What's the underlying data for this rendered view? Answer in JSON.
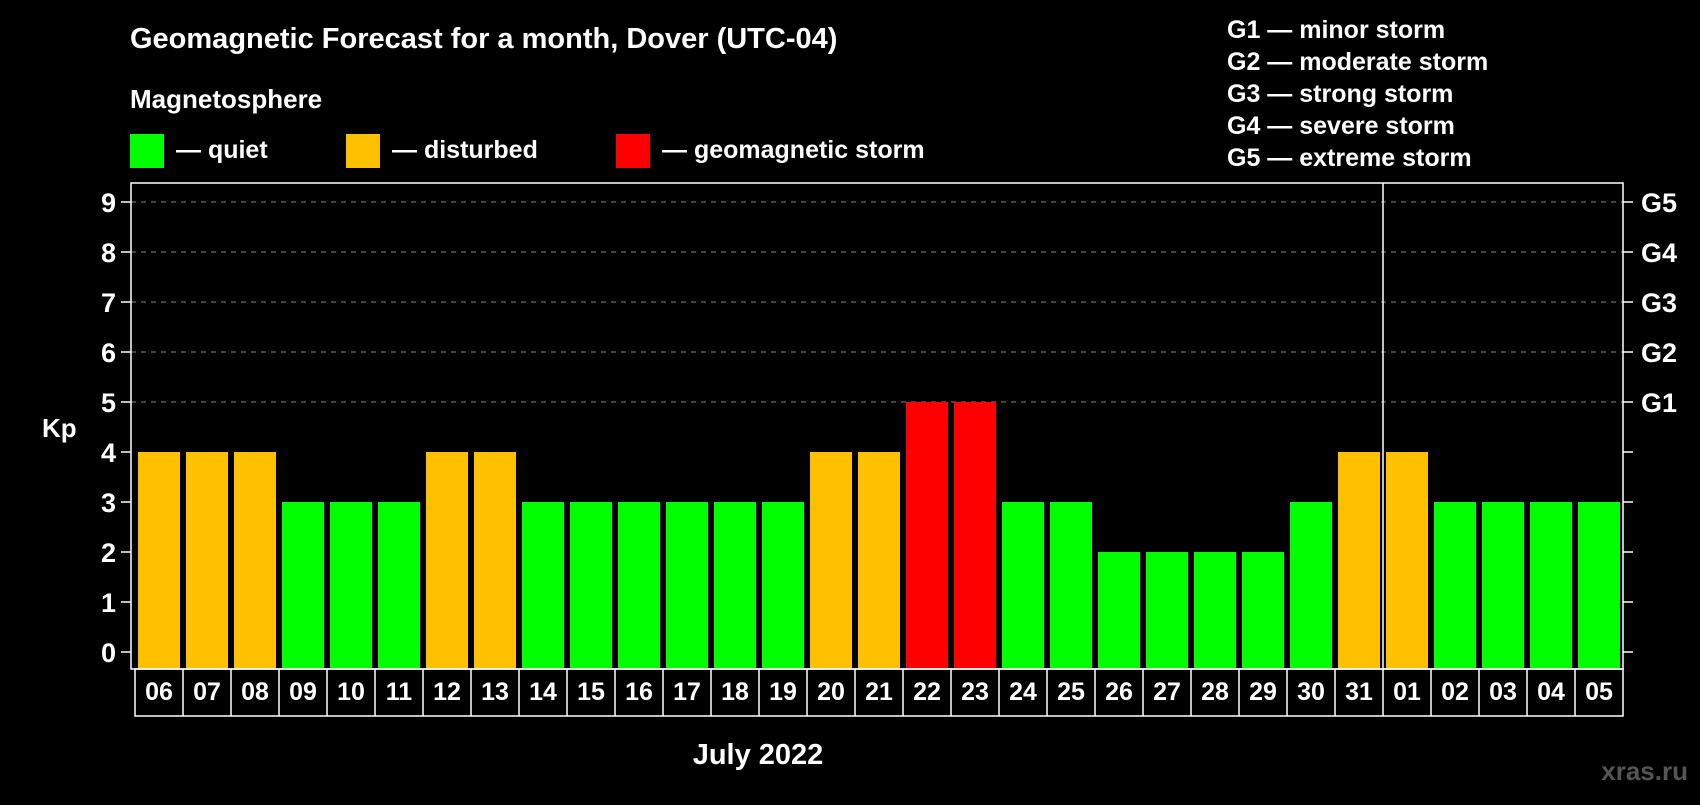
{
  "chart_data": {
    "type": "bar",
    "title": "Geomagnetic Forecast for a month, Dover (UTC-04)",
    "subtitle": "Magnetosphere",
    "ylabel": "Kp",
    "xlabel": "July 2022",
    "ylim": [
      0,
      9
    ],
    "yticks": [
      "0",
      "1",
      "2",
      "3",
      "4",
      "5",
      "6",
      "7",
      "8",
      "9"
    ],
    "grid_dashed_from": 5,
    "categories": [
      "06",
      "07",
      "08",
      "09",
      "10",
      "11",
      "12",
      "13",
      "14",
      "15",
      "16",
      "17",
      "18",
      "19",
      "20",
      "21",
      "22",
      "23",
      "24",
      "25",
      "26",
      "27",
      "28",
      "29",
      "30",
      "31",
      "01",
      "02",
      "03",
      "04",
      "05"
    ],
    "values": [
      4,
      4,
      4,
      3,
      3,
      3,
      4,
      4,
      3,
      3,
      3,
      3,
      3,
      3,
      4,
      4,
      5,
      5,
      3,
      3,
      2,
      2,
      2,
      2,
      3,
      4,
      4,
      3,
      3,
      3,
      3
    ],
    "month_divider_after_index": 25,
    "status_legend": [
      {
        "label": "— quiet",
        "color": "#00ff00"
      },
      {
        "label": "— disturbed",
        "color": "#ffc000"
      },
      {
        "label": "— geomagnetic storm",
        "color": "#ff0000"
      }
    ],
    "g_levels_right": [
      {
        "label": "G1",
        "kp": 5
      },
      {
        "label": "G2",
        "kp": 6
      },
      {
        "label": "G3",
        "kp": 7
      },
      {
        "label": "G4",
        "kp": 8
      },
      {
        "label": "G5",
        "kp": 9
      }
    ],
    "g_legend": [
      "G1 — minor storm",
      "G2 — moderate storm",
      "G3 — strong storm",
      "G4 — severe storm",
      "G5 — extreme storm"
    ]
  },
  "watermark": "xras.ru"
}
